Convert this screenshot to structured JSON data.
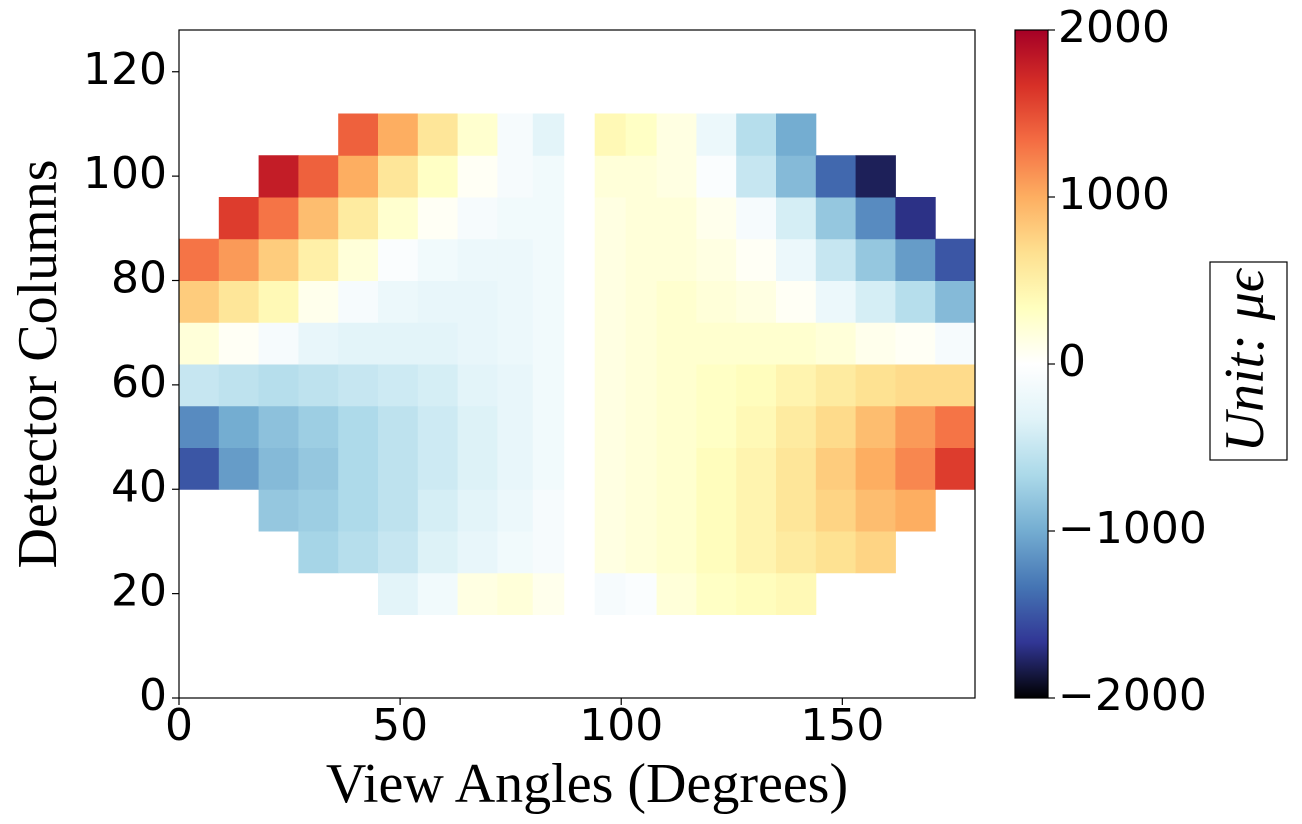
{
  "chart_data": {
    "type": "heatmap",
    "xlabel": "View Angles (Degrees)",
    "ylabel": "Detector Columns",
    "colorbar_label": "Unit: μϵ",
    "xlim": [
      0,
      180
    ],
    "ylim": [
      0,
      128
    ],
    "xticks": [
      0,
      50,
      100,
      150
    ],
    "yticks": [
      0,
      20,
      40,
      60,
      80,
      100,
      120
    ],
    "zlim": [
      -2000,
      2000
    ],
    "zticks": [
      {
        "value": -2000,
        "label": "−2000"
      },
      {
        "value": -1000,
        "label": "−1000"
      },
      0,
      1000,
      2000
    ],
    "colorscale": [
      "#000000",
      "#313695",
      "#4575b4",
      "#74add1",
      "#abd9e9",
      "#e0f3f8",
      "#ffffff",
      "#ffffbf",
      "#fee090",
      "#fdae61",
      "#f46d43",
      "#d73027",
      "#a50026"
    ],
    "x_edges": [
      0,
      9,
      18,
      27,
      36,
      45,
      54,
      63,
      72,
      80,
      87,
      94,
      101,
      108,
      117,
      126,
      135,
      144,
      153,
      162,
      171,
      180
    ],
    "y_edges": [
      0,
      8,
      16,
      24,
      32,
      40,
      48,
      56,
      64,
      72,
      80,
      88,
      96,
      104,
      112,
      120,
      128
    ],
    "z": [
      [
        null,
        null,
        null,
        null,
        null,
        null,
        null,
        null,
        null,
        null,
        null,
        null,
        null,
        null,
        null,
        null,
        null,
        null,
        null,
        null,
        null
      ],
      [
        null,
        null,
        null,
        null,
        null,
        null,
        null,
        null,
        null,
        null,
        null,
        null,
        null,
        null,
        null,
        null,
        null,
        null,
        null,
        null,
        null
      ],
      [
        null,
        null,
        null,
        null,
        null,
        -300,
        -150,
        150,
        200,
        100,
        null,
        -100,
        -50,
        200,
        300,
        350,
        400,
        null,
        null,
        null,
        null
      ],
      [
        null,
        null,
        null,
        -700,
        -600,
        -500,
        -350,
        -250,
        -150,
        -100,
        null,
        150,
        200,
        250,
        350,
        450,
        550,
        650,
        750,
        null,
        null
      ],
      [
        null,
        null,
        -800,
        -750,
        -650,
        -550,
        -400,
        -300,
        -200,
        -100,
        null,
        150,
        200,
        250,
        350,
        450,
        600,
        750,
        900,
        1000,
        null
      ],
      [
        -1500,
        -1100,
        -900,
        -800,
        -650,
        -550,
        -450,
        -350,
        -250,
        -150,
        null,
        150,
        200,
        250,
        350,
        450,
        600,
        800,
        1000,
        1200,
        1600
      ],
      [
        -1200,
        -1000,
        -850,
        -750,
        -650,
        -550,
        -450,
        -350,
        -250,
        -150,
        null,
        150,
        200,
        250,
        300,
        400,
        550,
        700,
        900,
        1100,
        1300
      ],
      [
        -500,
        -550,
        -600,
        -550,
        -500,
        -450,
        -400,
        -300,
        -250,
        -150,
        null,
        150,
        200,
        250,
        300,
        350,
        450,
        550,
        650,
        700,
        700
      ],
      [
        200,
        50,
        -100,
        -250,
        -300,
        -300,
        -300,
        -250,
        -200,
        -150,
        null,
        150,
        200,
        250,
        250,
        250,
        250,
        200,
        100,
        50,
        -100
      ],
      [
        800,
        600,
        400,
        100,
        -100,
        -200,
        -250,
        -250,
        -200,
        -150,
        null,
        150,
        200,
        250,
        200,
        150,
        50,
        -200,
        -400,
        -600,
        -900
      ],
      [
        1300,
        1100,
        800,
        500,
        200,
        -50,
        -150,
        -200,
        -200,
        -150,
        null,
        150,
        200,
        200,
        150,
        50,
        -200,
        -500,
        -800,
        -1100,
        -1500
      ],
      [
        null,
        1600,
        1300,
        900,
        550,
        250,
        50,
        -100,
        -150,
        -150,
        null,
        150,
        200,
        200,
        100,
        -100,
        -400,
        -800,
        -1200,
        -1700,
        null
      ],
      [
        null,
        null,
        1800,
        1400,
        1000,
        600,
        300,
        50,
        -100,
        -150,
        null,
        200,
        200,
        150,
        -50,
        -500,
        -900,
        -1400,
        -1800,
        null,
        null
      ],
      [
        null,
        null,
        null,
        null,
        1400,
        1000,
        600,
        250,
        -100,
        -300,
        null,
        400,
        300,
        150,
        -200,
        -600,
        -1000,
        null,
        null,
        null,
        null
      ],
      [
        null,
        null,
        null,
        null,
        null,
        null,
        null,
        null,
        null,
        null,
        null,
        null,
        null,
        null,
        null,
        null,
        null,
        null,
        null,
        null,
        null
      ],
      [
        null,
        null,
        null,
        null,
        null,
        null,
        null,
        null,
        null,
        null,
        null,
        null,
        null,
        null,
        null,
        null,
        null,
        null,
        null,
        null,
        null
      ]
    ]
  }
}
